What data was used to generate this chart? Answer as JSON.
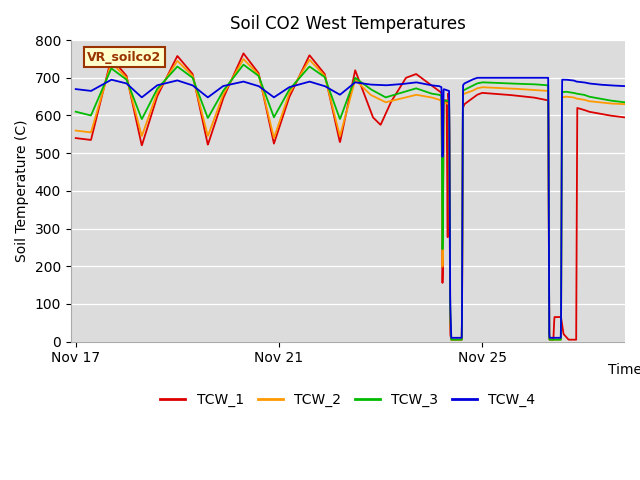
{
  "title": "Soil CO2 West Temperatures",
  "ylabel": "Soil Temperature (C)",
  "xlabel": "Time",
  "bg_color": "#dcdcdc",
  "fig_bg": "#ffffff",
  "ylim": [
    0,
    800
  ],
  "yticks": [
    0,
    100,
    200,
    300,
    400,
    500,
    600,
    700,
    800
  ],
  "xtick_labels": [
    "Nov 17",
    "Nov 21",
    "Nov 25"
  ],
  "series_colors": [
    "#dd0000",
    "#ff9900",
    "#00bb00",
    "#0000dd"
  ],
  "series_names": [
    "TCW_1",
    "TCW_2",
    "TCW_3",
    "TCW_4"
  ],
  "vr_label": "VR_soilco2",
  "vr_bg": "#ffffcc",
  "vr_border": "#993300"
}
